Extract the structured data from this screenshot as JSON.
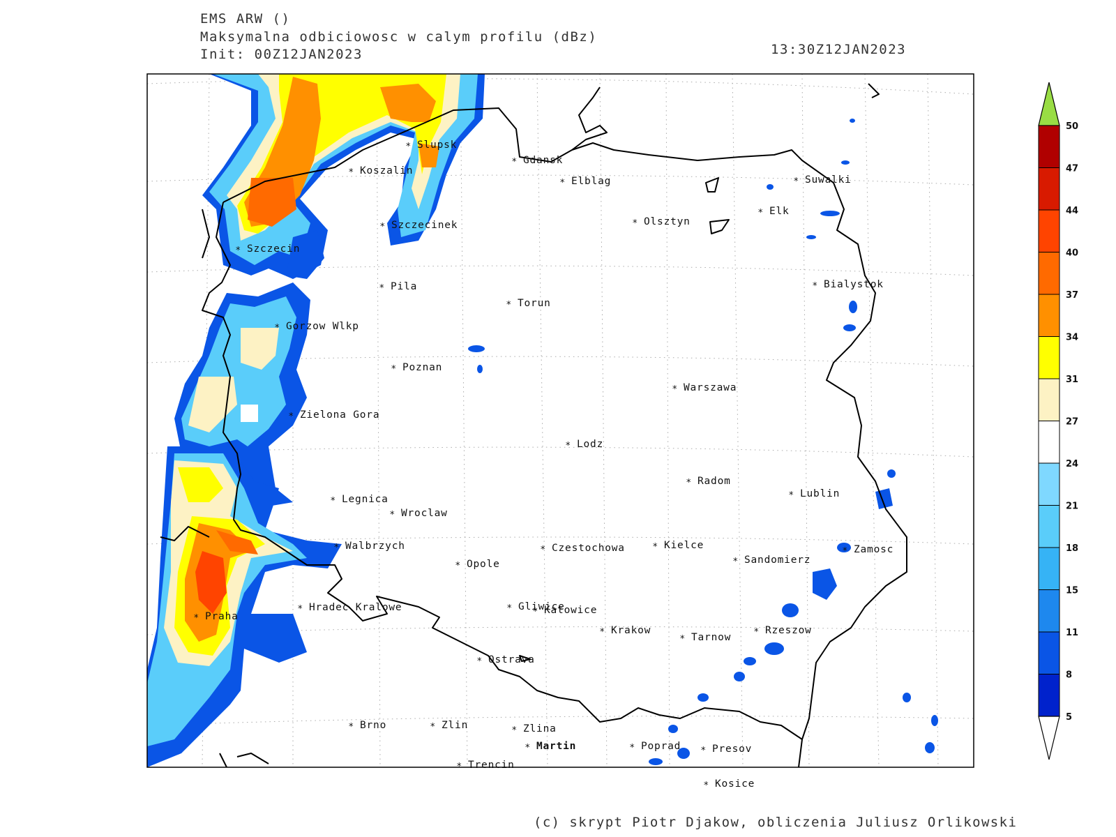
{
  "header": {
    "model": "EMS ARW ()",
    "field": "Maksymalna odbiciowosc w calym profilu (dBz)",
    "init": "Init: 00Z12JAN2023",
    "valid": "13:30Z12JAN2023"
  },
  "credit": "(c) skrypt Piotr Djakow, obliczenia Juliusz Orlikowski",
  "cities": [
    {
      "name": "Slupsk"
    },
    {
      "name": "Gdansk"
    },
    {
      "name": "Koszalin"
    },
    {
      "name": "Elblag"
    },
    {
      "name": "Suwalki"
    },
    {
      "name": "Elk"
    },
    {
      "name": "Olsztyn"
    },
    {
      "name": "Szczecinek"
    },
    {
      "name": "Szczecin"
    },
    {
      "name": "Pila"
    },
    {
      "name": "Torun"
    },
    {
      "name": "Bialystok"
    },
    {
      "name": "Gorzow Wlkp"
    },
    {
      "name": "Poznan"
    },
    {
      "name": "Warszawa"
    },
    {
      "name": "Zielona Gora"
    },
    {
      "name": "Lodz"
    },
    {
      "name": "Radom"
    },
    {
      "name": "Lublin"
    },
    {
      "name": "Legnica"
    },
    {
      "name": "Wroclaw"
    },
    {
      "name": "Walbrzych"
    },
    {
      "name": "Czestochowa"
    },
    {
      "name": "Kielce"
    },
    {
      "name": "Zamosc"
    },
    {
      "name": "Opole"
    },
    {
      "name": "Sandomierz"
    },
    {
      "name": "Hradec Kralowe"
    },
    {
      "name": "Gliwice"
    },
    {
      "name": "Katowice"
    },
    {
      "name": "Praha"
    },
    {
      "name": "Krakow"
    },
    {
      "name": "Tarnow"
    },
    {
      "name": "Rzeszow"
    },
    {
      "name": "Ostrava"
    },
    {
      "name": "Brno"
    },
    {
      "name": "Zlin"
    },
    {
      "name": "Zlina"
    },
    {
      "name": "Martin"
    },
    {
      "name": "Poprad"
    },
    {
      "name": "Presov"
    },
    {
      "name": "Trencin"
    },
    {
      "name": "Kosice"
    }
  ],
  "colorbar": {
    "unit": "dBz",
    "levels": [
      "50",
      "47",
      "44",
      "40",
      "37",
      "34",
      "31",
      "27",
      "24",
      "21",
      "18",
      "15",
      "11",
      "8",
      "5"
    ],
    "colors": [
      "#b00000",
      "#d81a00",
      "#ff4400",
      "#ff6a00",
      "#ff9000",
      "#ffff00",
      "#fdf2c4",
      "#ffffff",
      "#7fd8ff",
      "#5acdfa",
      "#36b3f5",
      "#1e88ee",
      "#0a55e6",
      "#0022cc"
    ],
    "over_color": "#99dd44",
    "under_color": "#ffffff"
  }
}
